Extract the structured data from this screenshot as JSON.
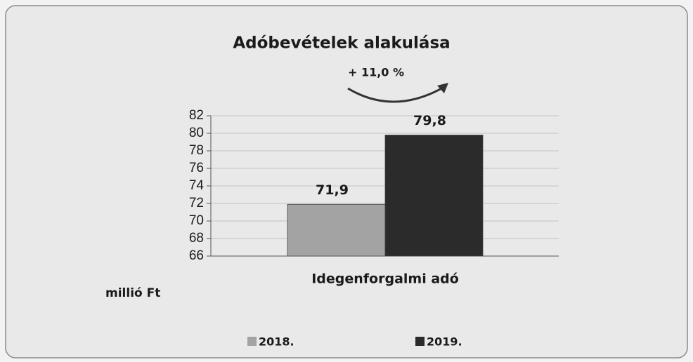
{
  "chart_data": {
    "type": "bar",
    "title": "Adóbevételek alakulása",
    "annotation": "+ 11,0 %",
    "y_label": "millió Ft",
    "categories": [
      "Idegenforgalmi adó"
    ],
    "series": [
      {
        "name": "2018.",
        "color": "#a3a3a3",
        "values": [
          71.9
        ],
        "value_labels": [
          "71,9"
        ]
      },
      {
        "name": "2019.",
        "color": "#2b2b2b",
        "values": [
          79.8
        ],
        "value_labels": [
          "79,8"
        ]
      }
    ],
    "ylim": [
      66,
      82
    ],
    "yticks": [
      66,
      68,
      70,
      72,
      74,
      76,
      78,
      80,
      82
    ],
    "grid": true,
    "legend": "bottom"
  }
}
